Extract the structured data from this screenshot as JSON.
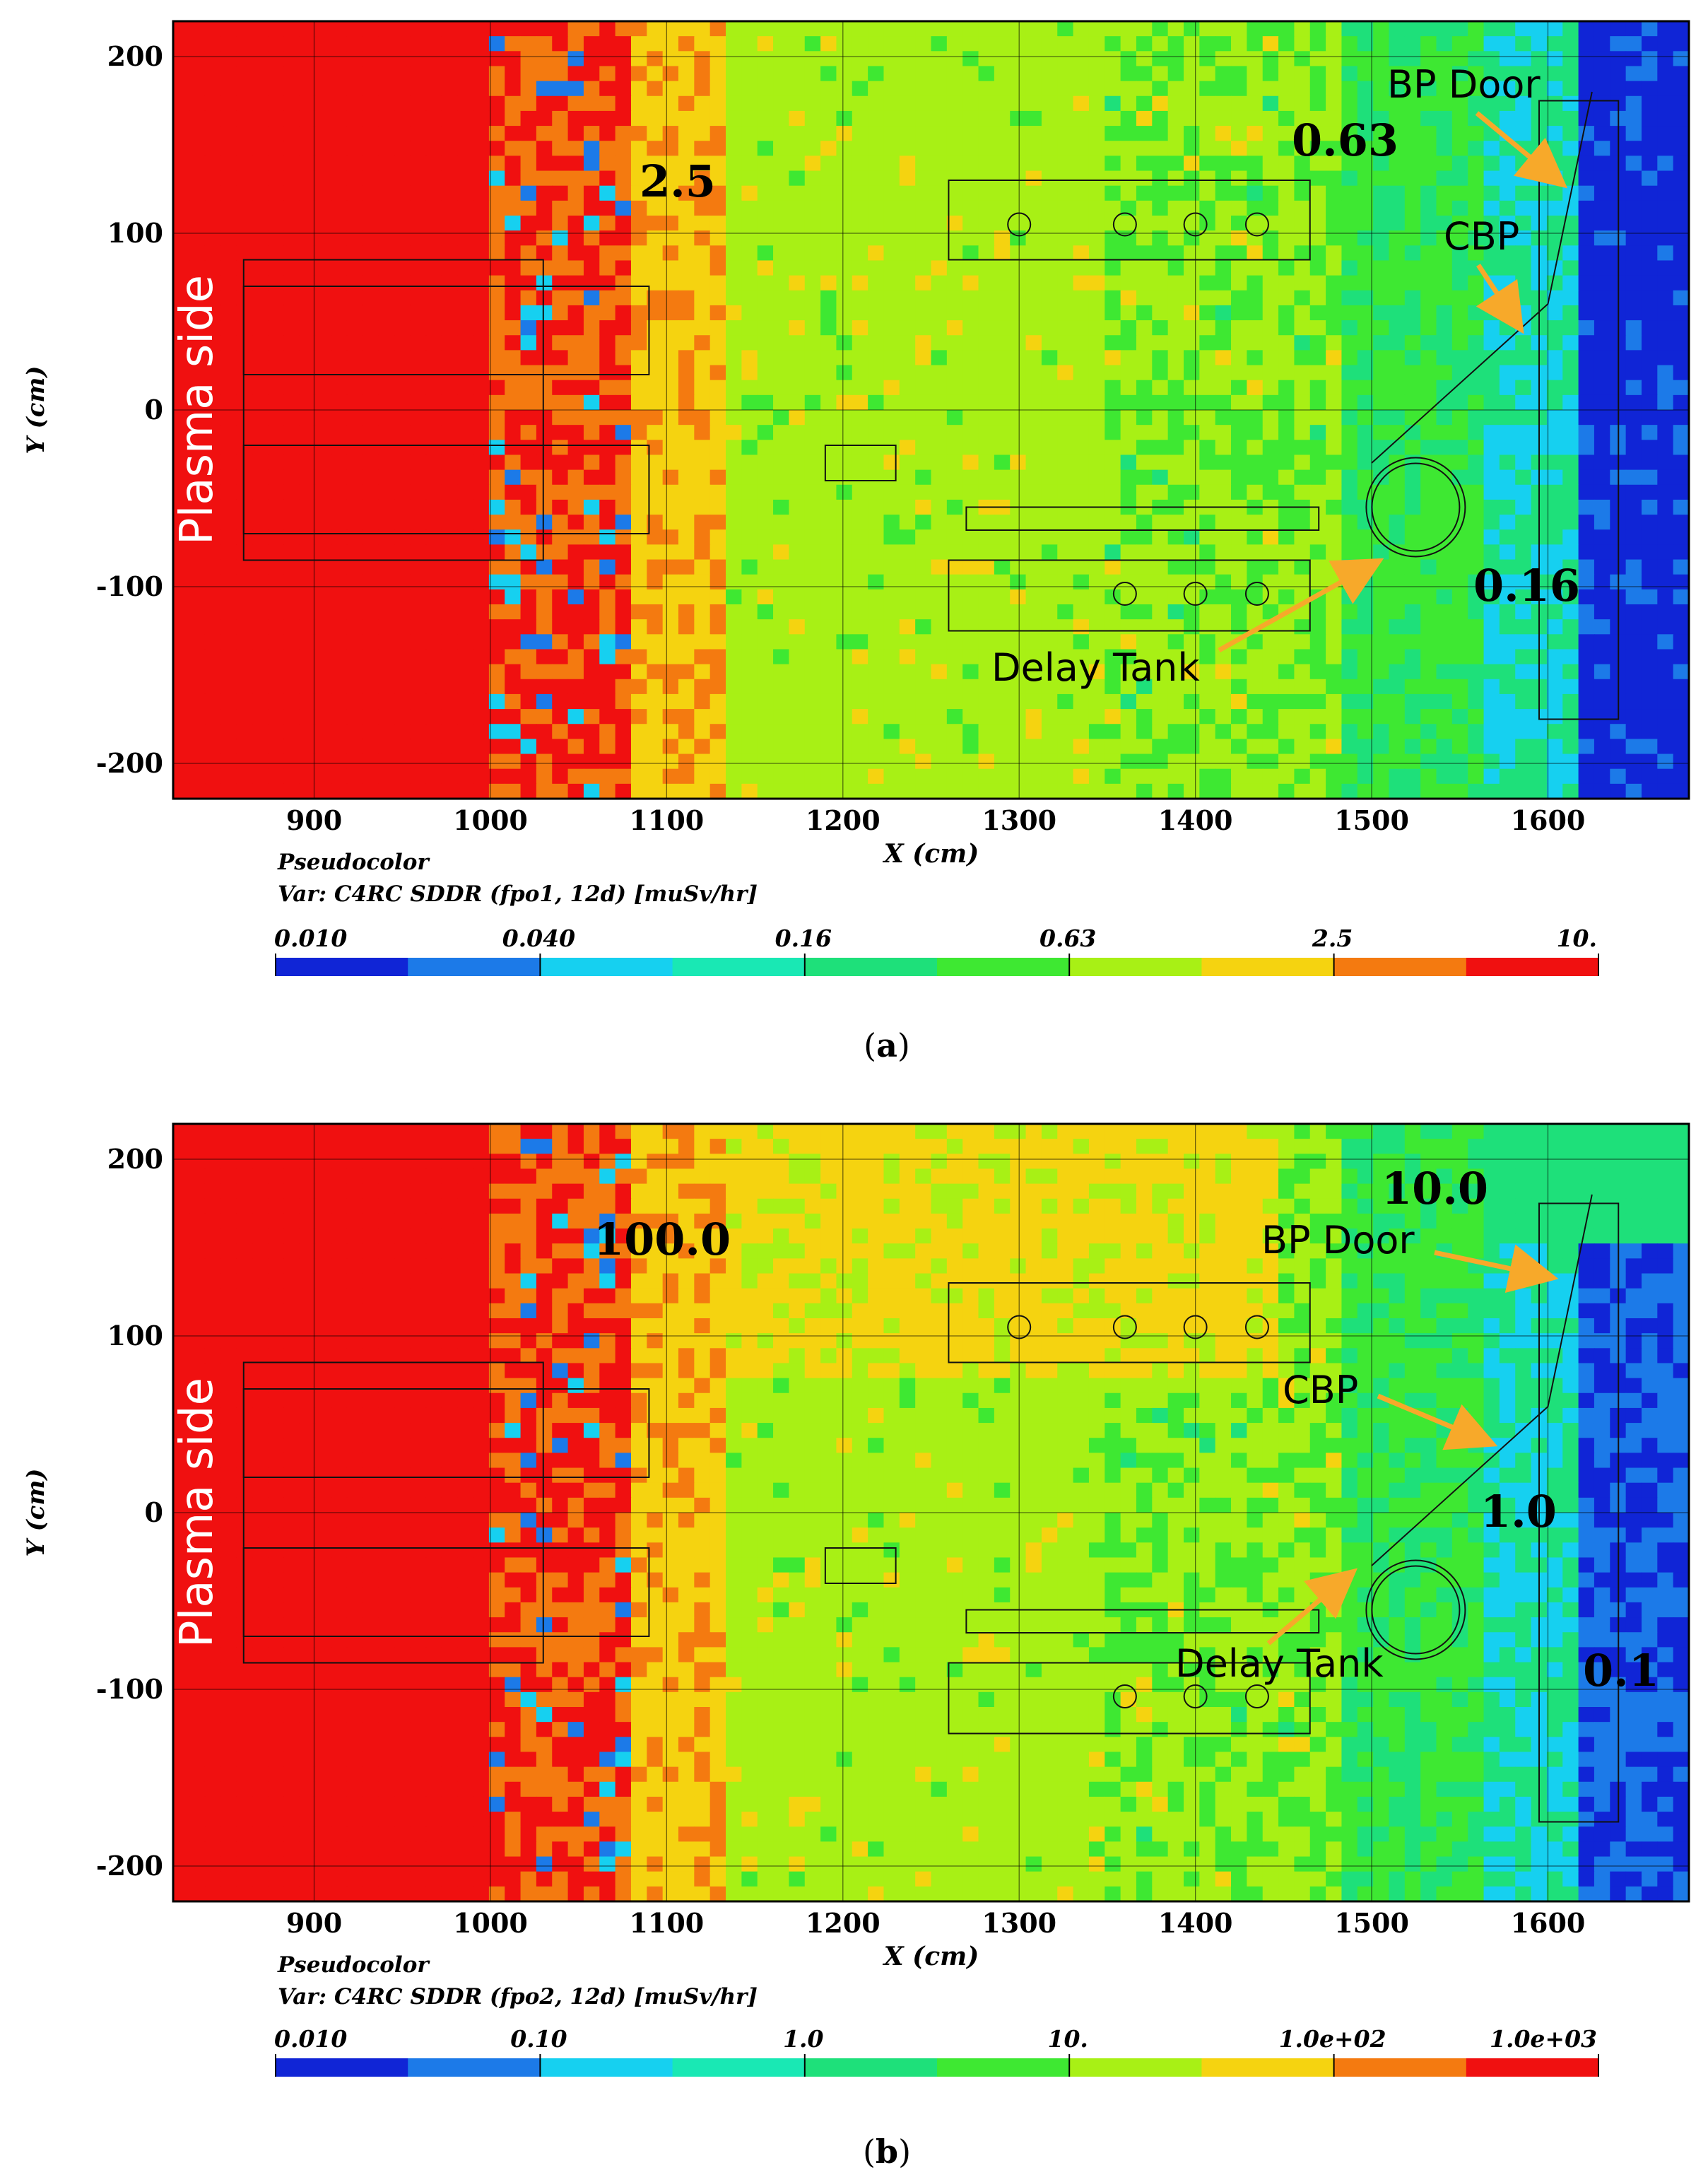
{
  "panels": [
    {
      "id": "a",
      "caption_letter": "a",
      "pseudocolor_label": "Pseudocolor",
      "var_label": "Var: C4RC SDDR (fpo1, 12d) [muSv/hr]",
      "side_label": "Plasma side",
      "annotations": {
        "bp_door": "BP Door",
        "cbp": "CBP",
        "delay_tank": "Delay Tank"
      },
      "contour_labels": [
        "2.5",
        "0.63",
        "0.16"
      ],
      "colorbar_ticks": [
        "0.010",
        "0.040",
        "0.16",
        "0.63",
        "2.5",
        "10."
      ],
      "colorbar_colors": [
        "#1025d6",
        "#1c7ae8",
        "#16d0f0",
        "#19e8b4",
        "#1ee07a",
        "#3ee832",
        "#a8f015",
        "#f5d310",
        "#f47a10",
        "#f01010"
      ]
    },
    {
      "id": "b",
      "caption_letter": "b",
      "pseudocolor_label": "Pseudocolor",
      "var_label": "Var: C4RC SDDR (fpo2, 12d) [muSv/hr]",
      "side_label": "Plasma side",
      "annotations": {
        "bp_door": "BP Door",
        "cbp": "CBP",
        "delay_tank": "Delay Tank"
      },
      "contour_labels": [
        "100.0",
        "10.0",
        "1.0",
        "0.1"
      ],
      "colorbar_ticks": [
        "0.010",
        "0.10",
        "1.0",
        "10.",
        "1.0e+02",
        "1.0e+03"
      ],
      "colorbar_colors": [
        "#1025d6",
        "#1c7ae8",
        "#16d0f0",
        "#19e8b4",
        "#1ee07a",
        "#3ee832",
        "#a8f015",
        "#f5d310",
        "#f47a10",
        "#f01010"
      ]
    }
  ],
  "chart_data": [
    {
      "type": "heatmap",
      "title": "C4RC SDDR (fpo1, 12d) [muSv/hr]",
      "xlabel": "X (cm)",
      "ylabel": "Y (cm)",
      "xlim": [
        820,
        1680
      ],
      "ylim": [
        -220,
        220
      ],
      "x_ticks": [
        900,
        1000,
        1100,
        1200,
        1300,
        1400,
        1500,
        1600
      ],
      "y_ticks": [
        -200,
        -100,
        0,
        100,
        200
      ],
      "color_scale": "log",
      "color_range": [
        0.01,
        10
      ],
      "x_ticklabels": [
        "900",
        "1000",
        "1100",
        "1200",
        "1300",
        "1400",
        "1500",
        "1600"
      ],
      "y_ticklabels": [
        "-200",
        "-100",
        "0",
        "100",
        "200"
      ]
    },
    {
      "type": "heatmap",
      "title": "C4RC SDDR (fpo2, 12d) [muSv/hr]",
      "xlabel": "X (cm)",
      "ylabel": "Y (cm)",
      "xlim": [
        820,
        1680
      ],
      "ylim": [
        -220,
        220
      ],
      "x_ticks": [
        900,
        1000,
        1100,
        1200,
        1300,
        1400,
        1500,
        1600
      ],
      "y_ticks": [
        -200,
        -100,
        0,
        100,
        200
      ],
      "color_scale": "log",
      "color_range": [
        0.01,
        1000
      ],
      "x_ticklabels": [
        "900",
        "1000",
        "1100",
        "1200",
        "1300",
        "1400",
        "1500",
        "1600"
      ],
      "y_ticklabels": [
        "-200",
        "-100",
        "0",
        "100",
        "200"
      ]
    }
  ]
}
